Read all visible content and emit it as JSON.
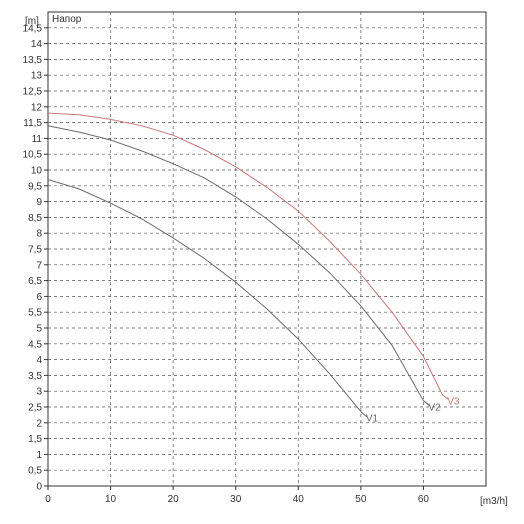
{
  "chart_data": {
    "type": "line",
    "title": "Напор",
    "xlabel": "[m3/h]",
    "ylabel": "[m]",
    "xlim": [
      0,
      70
    ],
    "ylim": [
      0,
      15
    ],
    "grid": true,
    "x_ticks": [
      "0",
      "10",
      "20",
      "30",
      "40",
      "50",
      "60"
    ],
    "y_ticks": [
      "0",
      "0,5",
      "1",
      "1,5",
      "2",
      "2,5",
      "3",
      "3,5",
      "4",
      "4,5",
      "5",
      "5,5",
      "6",
      "6,5",
      "7",
      "7,5",
      "8",
      "8,5",
      "9",
      "9,5",
      "10",
      "10,5",
      "11",
      "11,5",
      "12",
      "12,5",
      "13",
      "13,5",
      "14",
      "14,5"
    ],
    "series": [
      {
        "name": "V1",
        "color": "#6b6b6b",
        "x": [
          0,
          5,
          10,
          15,
          20,
          25,
          30,
          35,
          40,
          45,
          50
        ],
        "y": [
          9.7,
          9.4,
          8.95,
          8.45,
          7.85,
          7.2,
          6.45,
          5.6,
          4.65,
          3.55,
          2.35
        ]
      },
      {
        "name": "V2",
        "color": "#6b6b6b",
        "x": [
          0,
          5,
          10,
          15,
          20,
          25,
          30,
          35,
          40,
          45,
          50,
          55,
          60
        ],
        "y": [
          11.4,
          11.2,
          10.95,
          10.6,
          10.2,
          9.75,
          9.15,
          8.45,
          7.65,
          6.75,
          5.7,
          4.45,
          2.7
        ]
      },
      {
        "name": "V3",
        "color": "#c8787a",
        "x": [
          0,
          5,
          10,
          15,
          20,
          25,
          30,
          35,
          40,
          45,
          50,
          55,
          60,
          63
        ],
        "y": [
          11.8,
          11.75,
          11.6,
          11.4,
          11.1,
          10.65,
          10.1,
          9.45,
          8.7,
          7.75,
          6.7,
          5.5,
          4.1,
          2.9
        ]
      }
    ]
  }
}
